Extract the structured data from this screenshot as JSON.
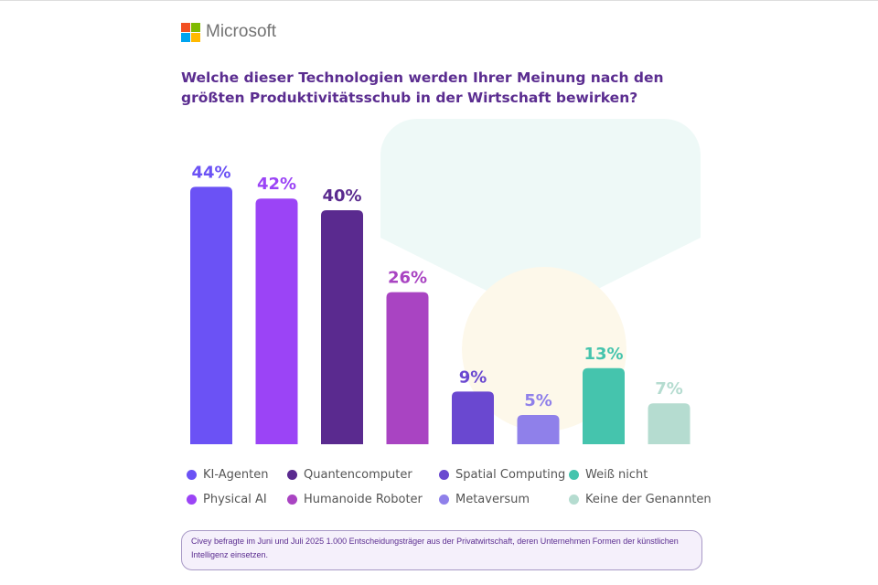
{
  "brand": {
    "name": "Microsoft",
    "logo_colors": [
      "#f25022",
      "#7fba00",
      "#00a4ef",
      "#ffb900"
    ]
  },
  "chart_data": {
    "type": "bar",
    "title": "Welche dieser Technologien werden Ihrer Meinung nach den größten Produktivitätsschub in der Wirtschaft bewirken?",
    "categories": [
      "KI-Agenten",
      "Physical AI",
      "Quantencomputer",
      "Humanoide Roboter",
      "Spatial Computing",
      "Metaversum",
      "Weiß nicht",
      "Keine der Genannten"
    ],
    "values": [
      44,
      42,
      40,
      26,
      9,
      5,
      13,
      7
    ],
    "labels": [
      "44%",
      "42%",
      "40%",
      "26%",
      "9%",
      "5%",
      "13%",
      "7%"
    ],
    "colors": [
      "#6b52f5",
      "#9b44f6",
      "#5a2a8f",
      "#a944c2",
      "#6a48d0",
      "#8f80ea",
      "#45c4ad",
      "#b5dcd0"
    ],
    "unit": "%",
    "grid": false,
    "legend_placement": "bottom"
  },
  "legend_order": [
    0,
    2,
    4,
    6,
    1,
    3,
    5,
    7
  ],
  "footnote": "Civey befragte im Juni und Juli 2025 1.000 Entscheidungsträger aus der Privatwirtschaft, deren Unternehmen Formen der künstlichen Intelligenz einsetzen."
}
